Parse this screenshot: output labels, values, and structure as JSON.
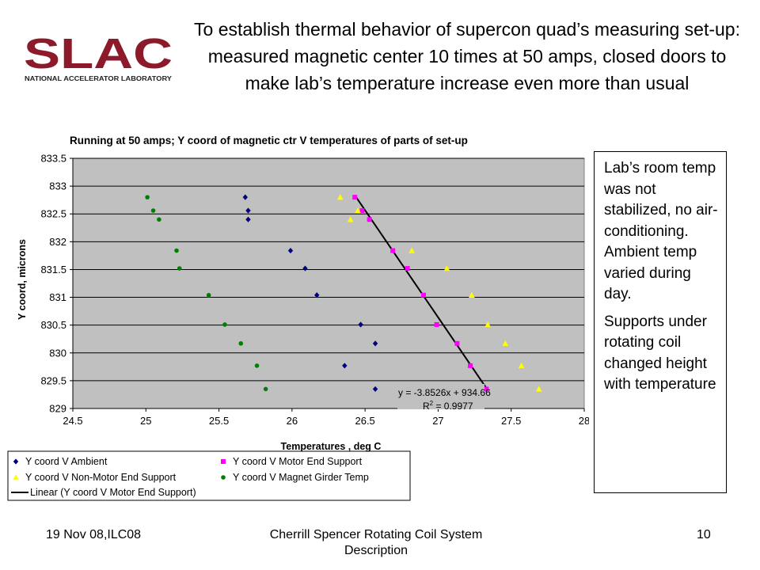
{
  "logo": {
    "text": "SLAC",
    "subtitle": "NATIONAL ACCELERATOR LABORATORY",
    "color": "#8c1a2b"
  },
  "slide_title": "To establish thermal behavior of supercon quad’s measuring set-up: measured magnetic center 10 times at 50 amps, closed doors to make lab’s temperature increase even more than usual",
  "note_paragraphs": [
    "Lab’s room temp was not stabilized, no air-conditioning. Ambient temp varied during day.",
    "Supports under rotating coil changed height with temperature"
  ],
  "footer": {
    "left": "19 Nov 08,ILC08",
    "center": "Cherrill Spencer Rotating Coil System Description",
    "right": "10"
  },
  "colors": {
    "plot_background": "#c0c0c0",
    "ambient": "#000080",
    "motor_end_support": "#ff00ff",
    "non_motor_end_support": "#ffff00",
    "magnet_girder": "#008000",
    "trendline": "#000000"
  },
  "chart_data": {
    "type": "scatter",
    "title": "Running at 50 amps; Y coord of magnetic ctr V  temperatures of parts of set-up",
    "xlabel": "Temperatures , deg C",
    "ylabel": "Y coord, microns",
    "xlim": [
      24.5,
      28
    ],
    "ylim": [
      829,
      833.5
    ],
    "xticks": [
      "24.5",
      "25",
      "25.5",
      "26",
      "26.5",
      "27",
      "27.5",
      "28"
    ],
    "yticks": [
      "829",
      "829.5",
      "830",
      "830.5",
      "831",
      "831.5",
      "832",
      "832.5",
      "833",
      "833.5"
    ],
    "grid": "horizontal",
    "legend_position": "bottom",
    "series": [
      {
        "name": "Y coord V Ambient",
        "marker": "diamond",
        "color": "#000080",
        "points": [
          [
            25.68,
            832.8
          ],
          [
            25.7,
            832.56
          ],
          [
            25.7,
            832.4
          ],
          [
            25.99,
            831.84
          ],
          [
            26.09,
            831.52
          ],
          [
            26.17,
            831.04
          ],
          [
            26.36,
            829.77
          ],
          [
            26.47,
            830.51
          ],
          [
            26.57,
            830.17
          ],
          [
            26.57,
            829.35
          ]
        ]
      },
      {
        "name": "Y coord V Motor End Support",
        "marker": "square",
        "color": "#ff00ff",
        "points": [
          [
            26.43,
            832.8
          ],
          [
            26.48,
            832.56
          ],
          [
            26.53,
            832.4
          ],
          [
            26.69,
            831.84
          ],
          [
            26.79,
            831.52
          ],
          [
            26.9,
            831.04
          ],
          [
            26.99,
            830.51
          ],
          [
            27.13,
            830.17
          ],
          [
            27.22,
            829.77
          ],
          [
            27.33,
            829.35
          ]
        ]
      },
      {
        "name": "Y coord V Non-Motor End Support",
        "marker": "triangle",
        "color": "#ffff00",
        "points": [
          [
            26.33,
            832.8
          ],
          [
            26.45,
            832.56
          ],
          [
            26.4,
            832.4
          ],
          [
            26.82,
            831.84
          ],
          [
            27.06,
            831.52
          ],
          [
            27.23,
            831.04
          ],
          [
            27.34,
            830.51
          ],
          [
            27.46,
            830.17
          ],
          [
            27.57,
            829.77
          ],
          [
            27.69,
            829.35
          ]
        ]
      },
      {
        "name": "Y coord V Magnet Girder Temp",
        "marker": "circle",
        "color": "#008000",
        "points": [
          [
            25.01,
            832.8
          ],
          [
            25.05,
            832.56
          ],
          [
            25.09,
            832.4
          ],
          [
            25.21,
            831.84
          ],
          [
            25.23,
            831.52
          ],
          [
            25.43,
            831.04
          ],
          [
            25.54,
            830.51
          ],
          [
            25.65,
            830.17
          ],
          [
            25.76,
            829.77
          ],
          [
            25.82,
            829.35
          ]
        ]
      }
    ],
    "trendline": {
      "name": "Linear (Y coord V Motor End Support)",
      "slope": -3.8526,
      "intercept": 934.66,
      "equation": "y = -3.8526x + 934.66",
      "r2_prefix": "R",
      "r2_sup": "2",
      "r2_suffix": " = 0.9977",
      "x_range": [
        26.43,
        27.33
      ]
    }
  }
}
